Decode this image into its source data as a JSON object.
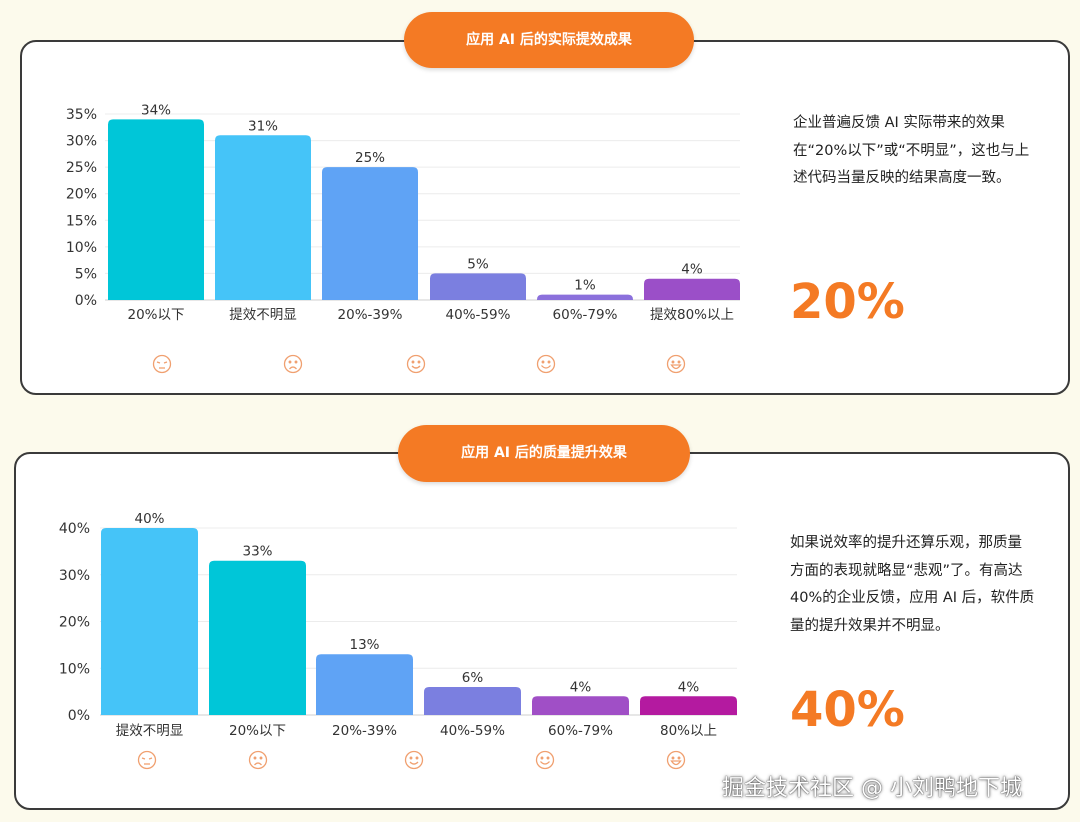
{
  "chart_data": [
    {
      "type": "bar",
      "title": "应用 AI 后的实际提效成果",
      "categories": [
        "20%以下",
        "提效不明显",
        "20%-39%",
        "40%-59%",
        "60%-79%",
        "提效80%以上"
      ],
      "values": [
        34,
        31,
        25,
        5,
        1,
        4
      ],
      "value_labels": [
        "34%",
        "31%",
        "25%",
        "5%",
        "1%",
        "4%"
      ],
      "colors": [
        "#00c6d8",
        "#45c4f8",
        "#5fa3f5",
        "#7b7fe0",
        "#8b70dc",
        "#9b4fc8"
      ],
      "yticks": [
        0,
        5,
        10,
        15,
        20,
        25,
        30,
        35
      ],
      "ytick_labels": [
        "0%",
        "5%",
        "10%",
        "15%",
        "20%",
        "25%",
        "30%",
        "35%"
      ],
      "ylim": [
        0,
        35
      ],
      "grid": true,
      "icons": [
        "annoyed-face",
        "sad-face",
        "smile-face",
        "happy-face",
        "grin-face"
      ],
      "xlabel": "",
      "ylabel": ""
    },
    {
      "type": "bar",
      "title": "应用 AI 后的质量提升效果",
      "categories": [
        "提效不明显",
        "20%以下",
        "20%-39%",
        "40%-59%",
        "60%-79%",
        "80%以上"
      ],
      "values": [
        40,
        33,
        13,
        6,
        4,
        4
      ],
      "value_labels": [
        "40%",
        "33%",
        "13%",
        "6%",
        "4%",
        "4%"
      ],
      "colors": [
        "#45c4f8",
        "#00c6d8",
        "#5fa3f5",
        "#7b7fe0",
        "#a04fc6",
        "#b41aa0"
      ],
      "yticks": [
        0,
        10,
        20,
        30,
        40
      ],
      "ytick_labels": [
        "0%",
        "10%",
        "20%",
        "30%",
        "40%"
      ],
      "ylim": [
        0,
        40
      ],
      "grid": true,
      "icons": [
        "annoyed-face",
        "sad-face",
        "smile-face",
        "happy-face",
        "grin-face"
      ],
      "xlabel": "",
      "ylabel": ""
    }
  ],
  "panels": [
    {
      "title": "应用 AI 后的实际提效成果",
      "description": "企业普遍反馈 AI 实际带来的效果在“20%以下”或“不明显”，这也与上述代码当量反映的结果高度一致。",
      "highlight": "20%"
    },
    {
      "title": "应用 AI 后的质量提升效果",
      "description": "如果说效率的提升还算乐观，那质量方面的表现就略显“悲观”了。有高达 40%的企业反馈，应用 AI 后，软件质量的提升效果并不明显。",
      "highlight": "40%"
    }
  ],
  "accent_color": "#f47a24",
  "watermark": "掘金技术社区 @ 小刘鸭地下城"
}
